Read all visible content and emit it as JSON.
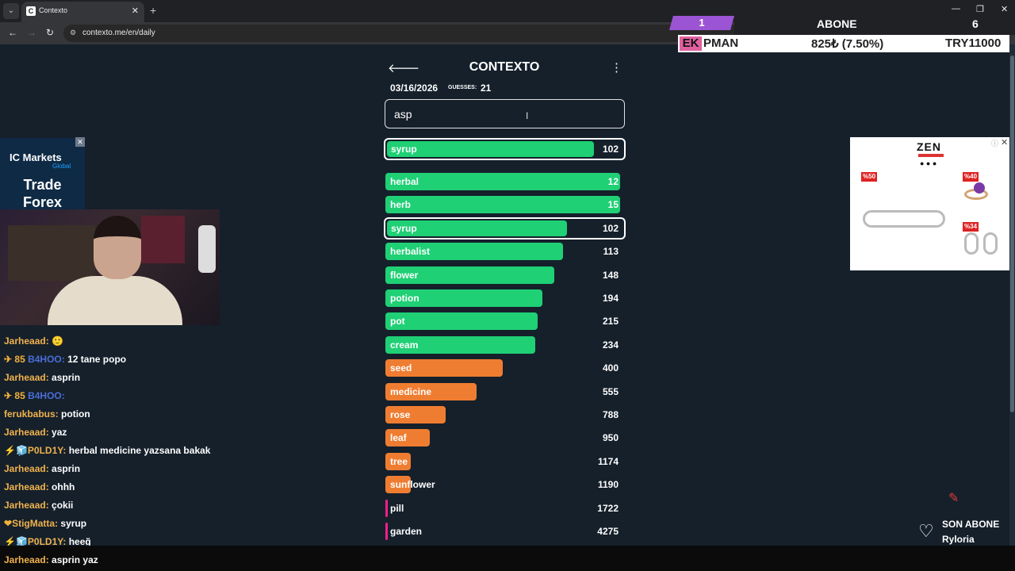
{
  "browser": {
    "tab_title": "Contexto",
    "favicon": "C",
    "url": "contexto.me/en/daily",
    "new_tab": "+",
    "close": "✕"
  },
  "game": {
    "title": "CONTEXTO",
    "date": "03/16/2026",
    "guesses_label": "GUESSES:",
    "guesses": "21",
    "input_value": "asp",
    "current_guess": {
      "word": "syrup",
      "rank": "102",
      "fill": 0.89,
      "color": "#1fd075"
    },
    "guesses_list": [
      {
        "word": "herbal",
        "rank": "12",
        "fill": 1.0,
        "color": "#1fd075"
      },
      {
        "word": "herb",
        "rank": "15",
        "fill": 1.0,
        "color": "#1fd075"
      },
      {
        "word": "syrup",
        "rank": "102",
        "fill": 0.89,
        "color": "#1fd075",
        "highlight": true
      },
      {
        "word": "herbalist",
        "rank": "113",
        "fill": 0.88,
        "color": "#1fd075"
      },
      {
        "word": "flower",
        "rank": "148",
        "fill": 0.84,
        "color": "#1fd075"
      },
      {
        "word": "potion",
        "rank": "194",
        "fill": 0.79,
        "color": "#1fd075"
      },
      {
        "word": "pot",
        "rank": "215",
        "fill": 0.77,
        "color": "#1fd075"
      },
      {
        "word": "cream",
        "rank": "234",
        "fill": 0.76,
        "color": "#1fd075"
      },
      {
        "word": "seed",
        "rank": "400",
        "fill": 0.62,
        "color": "#ef7d31"
      },
      {
        "word": "medicine",
        "rank": "555",
        "fill": 0.51,
        "color": "#ef7d31"
      },
      {
        "word": "rose",
        "rank": "788",
        "fill": 0.38,
        "color": "#ef7d31"
      },
      {
        "word": "leaf",
        "rank": "950",
        "fill": 0.31,
        "color": "#ef7d31"
      },
      {
        "word": "tree",
        "rank": "1174",
        "fill": 0.23,
        "color": "#ef7d31"
      },
      {
        "word": "sunflower",
        "rank": "1190",
        "fill": 0.23,
        "color": "#ef7d31"
      },
      {
        "word": "pill",
        "rank": "1722",
        "fill": 0.12,
        "color": "#f01f8a"
      },
      {
        "word": "garden",
        "rank": "4275",
        "fill": 0.01,
        "color": "#f01f8a"
      }
    ]
  },
  "ad_left": {
    "brand": "IC Markets",
    "sub": "Global",
    "line1": "Trade",
    "line2": "Forex"
  },
  "ticker": {
    "count_left": "1",
    "label": "ABONE",
    "count_right": "6",
    "prefix": "EK",
    "name": "PMAN",
    "price": "825₺ (7.50%)",
    "goal": "TRY11000"
  },
  "ad_right": {
    "brand": "ZEN",
    "discounts": [
      "%50",
      "%40",
      "%34"
    ]
  },
  "chat": [
    {
      "user": "Jarheaad:",
      "msg": "🙂",
      "badge": ""
    },
    {
      "user": "B4HOO:",
      "msg": "12 tane popo",
      "badge": "✈ 85 ",
      "faded": true
    },
    {
      "user": "Jarheaad:",
      "msg": "asprin",
      "badge": ""
    },
    {
      "user": "B4HOO:",
      "msg": "",
      "badge": "✈ 85 ",
      "faded": true
    },
    {
      "user": "ferukbabus:",
      "msg": "potion",
      "badge": ""
    },
    {
      "user": "Jarheaad:",
      "msg": "yaz",
      "badge": ""
    },
    {
      "user": "P0LD1Y:",
      "msg": "herbal medicine yazsana bakak",
      "badge": "⚡🧊"
    },
    {
      "user": "Jarheaad:",
      "msg": "asprin",
      "badge": ""
    },
    {
      "user": "Jarheaad:",
      "msg": "ohhh",
      "badge": ""
    },
    {
      "user": "Jarheaad:",
      "msg": "çokii",
      "badge": ""
    },
    {
      "user": "StigMatta:",
      "msg": "syrup",
      "badge": "❤"
    },
    {
      "user": "P0LD1Y:",
      "msg": "heeğ",
      "badge": "⚡🧊"
    },
    {
      "user": "Jarheaad:",
      "msg": "asprin yaz",
      "badge": ""
    }
  ],
  "son_abone": {
    "label": "SON ABONE",
    "name": "Ryloria"
  }
}
